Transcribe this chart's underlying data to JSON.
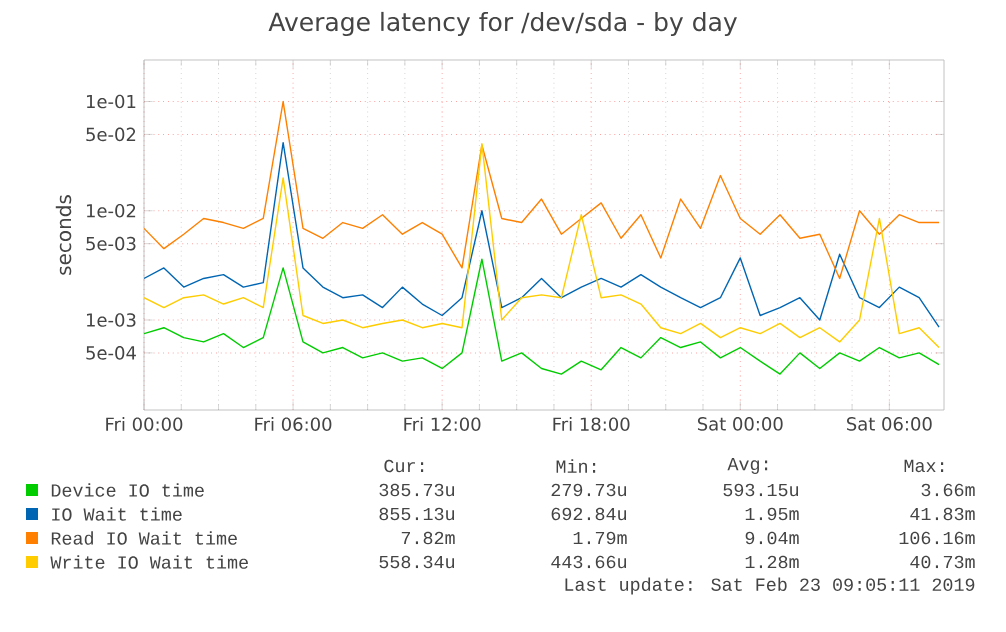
{
  "chart_data": {
    "type": "line",
    "title": "Average latency for /dev/sda - by day",
    "ylabel": "seconds",
    "log": "y",
    "grid": true,
    "legend": "bottom",
    "x": [
      "2019-02-22T00:00",
      "2019-02-22T00:48",
      "2019-02-22T01:36",
      "2019-02-22T02:24",
      "2019-02-22T03:12",
      "2019-02-22T04:00",
      "2019-02-22T04:48",
      "2019-02-22T05:36",
      "2019-02-22T06:24",
      "2019-02-22T07:12",
      "2019-02-22T08:00",
      "2019-02-22T08:48",
      "2019-02-22T09:36",
      "2019-02-22T10:24",
      "2019-02-22T11:12",
      "2019-02-22T12:00",
      "2019-02-22T12:48",
      "2019-02-22T13:36",
      "2019-02-22T14:24",
      "2019-02-22T15:12",
      "2019-02-22T16:00",
      "2019-02-22T16:48",
      "2019-02-22T17:36",
      "2019-02-22T18:24",
      "2019-02-22T19:12",
      "2019-02-22T20:00",
      "2019-02-22T20:48",
      "2019-02-22T21:36",
      "2019-02-22T22:24",
      "2019-02-22T23:12",
      "2019-02-23T00:00",
      "2019-02-23T00:48",
      "2019-02-23T01:36",
      "2019-02-23T02:24",
      "2019-02-23T03:12",
      "2019-02-23T04:00",
      "2019-02-23T04:48",
      "2019-02-23T05:36",
      "2019-02-23T06:24",
      "2019-02-23T07:12",
      "2019-02-23T08:00"
    ],
    "xlim": [
      "2019-02-22T00:00",
      "2019-02-23T08:12"
    ],
    "xticks": [
      {
        "value": "2019-02-22T00:00",
        "label": "Fri 00:00"
      },
      {
        "value": "2019-02-22T06:00",
        "label": "Fri 06:00"
      },
      {
        "value": "2019-02-22T12:00",
        "label": "Fri 12:00"
      },
      {
        "value": "2019-02-22T18:00",
        "label": "Fri 18:00"
      },
      {
        "value": "2019-02-23T00:00",
        "label": "Sat 00:00"
      },
      {
        "value": "2019-02-23T06:00",
        "label": "Sat 06:00"
      }
    ],
    "ylim": [
      0.00015,
      0.24
    ],
    "yticks": [
      {
        "value": 0.1,
        "label": "1e-01"
      },
      {
        "value": 0.05,
        "label": "5e-02"
      },
      {
        "value": 0.01,
        "label": "1e-02"
      },
      {
        "value": 0.005,
        "label": "5e-03"
      },
      {
        "value": 0.001,
        "label": "1e-03"
      },
      {
        "value": 0.0005,
        "label": "5e-04"
      }
    ],
    "series": [
      {
        "name": "Device IO time",
        "color": "#00cc00",
        "values": [
          0.00075,
          0.00085,
          0.00069,
          0.00063,
          0.00075,
          0.00056,
          0.00069,
          0.003,
          0.00063,
          0.0005,
          0.00056,
          0.00045,
          0.0005,
          0.00042,
          0.00045,
          0.00036,
          0.0005,
          0.0036,
          0.00042,
          0.0005,
          0.00036,
          0.00032,
          0.00042,
          0.00035,
          0.00056,
          0.00045,
          0.00069,
          0.00056,
          0.00063,
          0.00045,
          0.00056,
          0.00042,
          0.00032,
          0.0005,
          0.00036,
          0.0005,
          0.00042,
          0.00056,
          0.00045,
          0.0005,
          0.00039
        ]
      },
      {
        "name": "IO Wait time",
        "color": "#0066b3",
        "values": [
          0.0024,
          0.003,
          0.002,
          0.0024,
          0.0026,
          0.002,
          0.0022,
          0.042,
          0.003,
          0.002,
          0.0016,
          0.0017,
          0.0013,
          0.002,
          0.0014,
          0.0011,
          0.0016,
          0.01,
          0.0013,
          0.0016,
          0.0024,
          0.0016,
          0.002,
          0.0024,
          0.002,
          0.0026,
          0.002,
          0.0016,
          0.0013,
          0.0016,
          0.0037,
          0.0011,
          0.0013,
          0.0016,
          0.001,
          0.004,
          0.0016,
          0.0013,
          0.002,
          0.0016,
          0.00086
        ]
      },
      {
        "name": "Read IO Wait time",
        "color": "#ff8000",
        "values": [
          0.0069,
          0.0045,
          0.0061,
          0.0085,
          0.0078,
          0.0069,
          0.0085,
          0.1,
          0.0069,
          0.0056,
          0.0078,
          0.0069,
          0.0092,
          0.0061,
          0.0078,
          0.0061,
          0.003,
          0.04,
          0.0085,
          0.0078,
          0.0128,
          0.0061,
          0.0085,
          0.0118,
          0.0056,
          0.0092,
          0.0037,
          0.0128,
          0.0069,
          0.021,
          0.0085,
          0.0061,
          0.0092,
          0.0056,
          0.0061,
          0.0024,
          0.01,
          0.0061,
          0.0092,
          0.0078,
          0.0078
        ]
      },
      {
        "name": "Write IO Wait time",
        "color": "#ffcc00",
        "values": [
          0.0016,
          0.0013,
          0.0016,
          0.0017,
          0.0014,
          0.0016,
          0.0013,
          0.02,
          0.0011,
          0.00093,
          0.001,
          0.00085,
          0.00093,
          0.001,
          0.00085,
          0.00093,
          0.00085,
          0.041,
          0.001,
          0.0016,
          0.0017,
          0.0016,
          0.0092,
          0.0016,
          0.0017,
          0.0014,
          0.00085,
          0.00075,
          0.00093,
          0.00069,
          0.00085,
          0.00075,
          0.00093,
          0.00069,
          0.00085,
          0.00063,
          0.001,
          0.0085,
          0.00075,
          0.00085,
          0.00056
        ]
      }
    ],
    "annotations": [
      "Cur:",
      "Min:",
      "Avg:",
      "Max:",
      "385.73u",
      "279.73u",
      "593.15u",
      "3.66m",
      "855.13u",
      "692.84u",
      "1.95m",
      "41.83m",
      "7.82m",
      "1.79m",
      "9.04m",
      "106.16m",
      "558.34u",
      "443.66u",
      "1.28m",
      "40.73m",
      "Last update: Sat Feb 23 09:05:11 2019"
    ]
  }
}
